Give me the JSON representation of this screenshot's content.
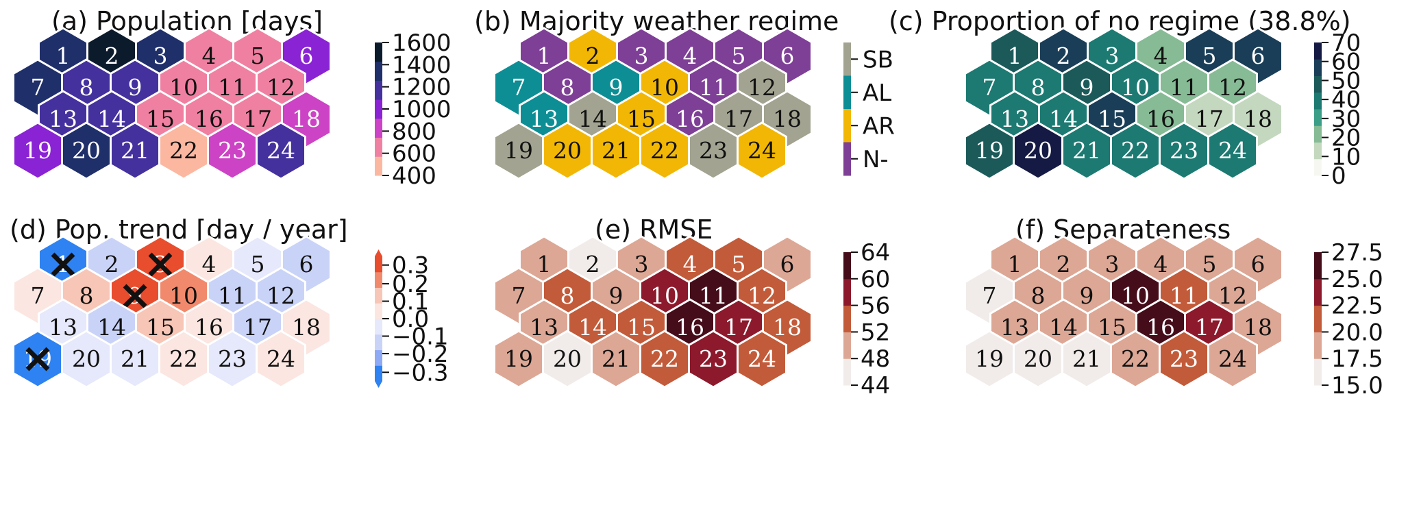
{
  "chart_data": [
    {
      "type": "heatmap",
      "layout": "hexagonal",
      "title": "(a) Population [days]",
      "cells": [
        "1",
        "2",
        "3",
        "4",
        "5",
        "6",
        "7",
        "8",
        "9",
        "10",
        "11",
        "12",
        "13",
        "14",
        "15",
        "16",
        "17",
        "18",
        "19",
        "20",
        "21",
        "22",
        "23",
        "24"
      ],
      "values": [
        1300,
        1550,
        1300,
        700,
        700,
        950,
        1300,
        1100,
        1250,
        700,
        700,
        700,
        1100,
        1250,
        700,
        700,
        700,
        900,
        1000,
        1300,
        1100,
        500,
        900,
        1100
      ],
      "colorbar": {
        "ticks": [
          "1600",
          "1400",
          "1200",
          "1000",
          "800",
          "600",
          "400"
        ],
        "range": [
          400,
          1600
        ],
        "colors": [
          "#fcb7a1",
          "#f080a2",
          "#cd43c5",
          "#8a23d4",
          "#45319e",
          "#1f2f6a",
          "#0c1b2c"
        ]
      }
    },
    {
      "type": "heatmap",
      "layout": "hexagonal",
      "title": "(b) Majority weather regime",
      "cells": [
        "1",
        "2",
        "3",
        "4",
        "5",
        "6",
        "7",
        "8",
        "9",
        "10",
        "11",
        "12",
        "13",
        "14",
        "15",
        "16",
        "17",
        "18",
        "19",
        "20",
        "21",
        "22",
        "23",
        "24"
      ],
      "categories": [
        "N-",
        "AR",
        "N-",
        "N-",
        "N-",
        "N-",
        "AL",
        "N-",
        "AL",
        "AR",
        "N-",
        "SB",
        "AL",
        "SB",
        "AR",
        "N-",
        "SB",
        "SB",
        "SB",
        "AR",
        "AR",
        "AR",
        "SB",
        "AR"
      ],
      "legend": [
        "SB",
        "AL",
        "AR",
        "N-"
      ],
      "colors": {
        "SB": "#a2a390",
        "AL": "#0d8e95",
        "AR": "#f2b704",
        "N-": "#7e3f96"
      }
    },
    {
      "type": "heatmap",
      "layout": "hexagonal",
      "title": "(c) Proportion of no regime (38.8%)",
      "cells": [
        "1",
        "2",
        "3",
        "4",
        "5",
        "6",
        "7",
        "8",
        "9",
        "10",
        "11",
        "12",
        "13",
        "14",
        "15",
        "16",
        "17",
        "18",
        "19",
        "20",
        "21",
        "22",
        "23",
        "24"
      ],
      "values": [
        45,
        55,
        35,
        25,
        55,
        55,
        35,
        35,
        45,
        35,
        25,
        25,
        35,
        35,
        55,
        25,
        15,
        15,
        45,
        65,
        35,
        35,
        35,
        35
      ],
      "colorbar": {
        "ticks": [
          "70",
          "60",
          "50",
          "40",
          "30",
          "20",
          "10",
          "0"
        ],
        "range": [
          0,
          70
        ],
        "colors": [
          "#f7f7f2",
          "#c4d8bf",
          "#86bb95",
          "#3b9e86",
          "#1c7a72",
          "#1c5a5a",
          "#1a3e57",
          "#151a44"
        ]
      }
    },
    {
      "type": "heatmap",
      "layout": "hexagonal",
      "title": "(d) Pop. trend [day / year]",
      "cells": [
        "1",
        "2",
        "3",
        "4",
        "5",
        "6",
        "7",
        "8",
        "9",
        "10",
        "11",
        "12",
        "13",
        "14",
        "15",
        "16",
        "17",
        "18",
        "19",
        "20",
        "21",
        "22",
        "23",
        "24"
      ],
      "values": [
        -0.35,
        -0.15,
        0.35,
        0.05,
        -0.05,
        -0.15,
        0.05,
        0.15,
        0.35,
        0.25,
        -0.15,
        -0.15,
        -0.05,
        -0.15,
        0.15,
        0.05,
        -0.15,
        0.05,
        -0.35,
        -0.05,
        -0.05,
        0.05,
        -0.05,
        0.05
      ],
      "significant": [
        "1",
        "3",
        "9",
        "19"
      ],
      "colorbar": {
        "ticks": [
          "0.3",
          "0.2",
          "0.1",
          "0.0",
          "−0.1",
          "−0.2",
          "−0.3"
        ],
        "range": [
          -0.35,
          0.35
        ],
        "colors": [
          "#2e82f2",
          "#8ea9f5",
          "#c9d3f8",
          "#e6e8fb",
          "#fbe6e1",
          "#f8c6b6",
          "#f18a6d",
          "#e84d2e"
        ]
      }
    },
    {
      "type": "heatmap",
      "layout": "hexagonal",
      "title": "(e) RMSE",
      "cells": [
        "1",
        "2",
        "3",
        "4",
        "5",
        "6",
        "7",
        "8",
        "9",
        "10",
        "11",
        "12",
        "13",
        "14",
        "15",
        "16",
        "17",
        "18",
        "19",
        "20",
        "21",
        "22",
        "23",
        "24"
      ],
      "values": [
        50,
        46,
        50,
        54,
        54,
        50,
        50,
        54,
        50,
        58,
        62,
        54,
        50,
        54,
        54,
        62,
        58,
        54,
        50,
        46,
        50,
        54,
        58,
        54
      ],
      "colorbar": {
        "ticks": [
          "64",
          "60",
          "56",
          "52",
          "48",
          "44"
        ],
        "range": [
          44,
          64
        ],
        "colors": [
          "#f1ecea",
          "#dda795",
          "#c25b3a",
          "#8c1a2c",
          "#450c1a"
        ]
      }
    },
    {
      "type": "heatmap",
      "layout": "hexagonal",
      "title": "(f) Separateness",
      "cells": [
        "1",
        "2",
        "3",
        "4",
        "5",
        "6",
        "7",
        "8",
        "9",
        "10",
        "11",
        "12",
        "13",
        "14",
        "15",
        "16",
        "17",
        "18",
        "19",
        "20",
        "21",
        "22",
        "23",
        "24"
      ],
      "values": [
        19,
        19,
        19,
        19,
        19,
        19,
        16,
        19,
        19,
        26.5,
        21,
        19,
        19,
        19,
        19,
        26.5,
        24,
        19,
        16,
        16,
        16,
        19,
        21,
        19
      ],
      "colorbar": {
        "ticks": [
          "27.5",
          "25.0",
          "22.5",
          "20.0",
          "17.5",
          "15.0"
        ],
        "range": [
          15,
          27.5
        ],
        "colors": [
          "#f1ecea",
          "#dda795",
          "#c25b3a",
          "#8c1a2c",
          "#450c1a"
        ]
      }
    }
  ]
}
